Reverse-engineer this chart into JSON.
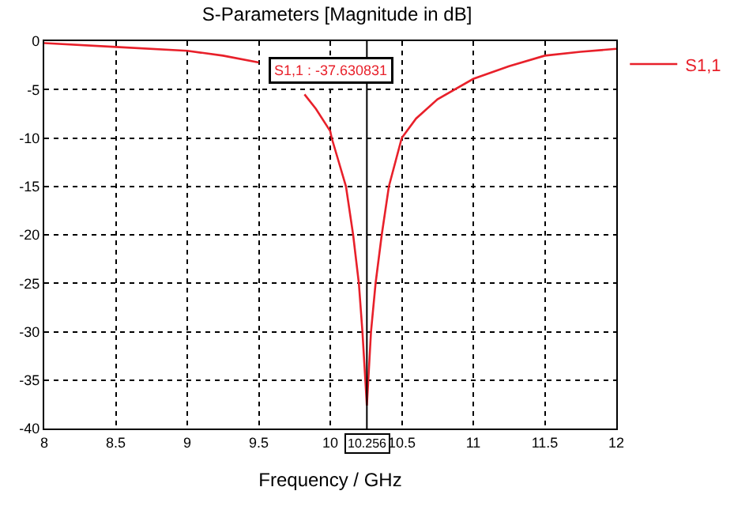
{
  "chart_data": {
    "type": "line",
    "title": "S-Parameters [Magnitude in dB]",
    "xlabel": "Frequency / GHz",
    "x": [
      8,
      8.5,
      9,
      9.25,
      9.5,
      9.57,
      9.75,
      9.82,
      9.9,
      10,
      10.01,
      10.05,
      10.11,
      10.16,
      10.2,
      10.225,
      10.256,
      10.285,
      10.317,
      10.36,
      10.41,
      10.5,
      10.6,
      10.75,
      11,
      11.25,
      11.5,
      11.75,
      12
    ],
    "series": [
      {
        "name": "S1,1",
        "color": "#e8202a",
        "values": [
          -0.2,
          -0.6,
          -1.0,
          -1.5,
          -2.2,
          null,
          null,
          -5.5,
          -7,
          -9.3,
          -10,
          -12,
          -15,
          -20,
          -25,
          -30,
          -37.63,
          -30,
          -25,
          -20,
          -15,
          -10,
          -8,
          -6,
          -3.9,
          -2.6,
          -1.5,
          -1.1,
          -0.8
        ]
      }
    ],
    "xlim": [
      8,
      12
    ],
    "xticks": [
      8,
      8.5,
      9,
      9.5,
      10,
      10.5,
      11,
      11.5,
      12
    ],
    "ylim": [
      -40,
      0
    ],
    "yticks": [
      0,
      -5,
      -10,
      -15,
      -20,
      -25,
      -30,
      -35,
      -40
    ],
    "grid": true,
    "legend": "right",
    "marker": "none",
    "line_style": "solid",
    "ref_lines": [
      {
        "axis": "x",
        "value": 10.256,
        "label": "10.256",
        "color": "#000000"
      }
    ],
    "annotations": [
      "S1,1 : -37.630831"
    ]
  }
}
